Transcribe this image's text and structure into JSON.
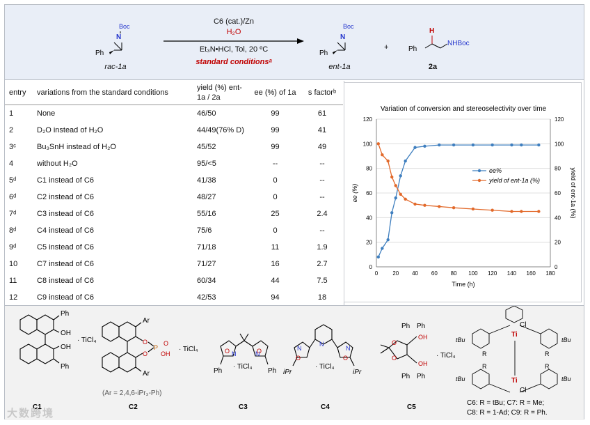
{
  "scheme": {
    "substrate_label": "rac-1a",
    "boc": "Boc",
    "N": "N",
    "ph": "Ph",
    "catalyst_line": "C6 (cat.)/Zn",
    "reagent_line": "H₂O",
    "additive_line": "Et₃N•HCl, Tol, 20 ºC",
    "conditions_line": "standard conditionsᵃ",
    "product1_label": "ent-1a",
    "plus": "+",
    "product2_label": "2a",
    "product2_nh": "NHBoc",
    "product2_h": "H"
  },
  "table": {
    "headers": [
      "entry",
      "variations from the standard conditions",
      "yield (%) ent-1a / 2a",
      "ee (%) of 1a",
      "s factorᵇ"
    ],
    "rows": [
      [
        "1",
        "None",
        "46/50",
        "99",
        "61"
      ],
      [
        "2",
        "D₂O instead of H₂O",
        "44/49(76% D)",
        "99",
        "41"
      ],
      [
        "3ᶜ",
        "Bu₃SnH instead of H₂O",
        "45/52",
        "99",
        "49"
      ],
      [
        "4",
        "without H₂O",
        "95/<5",
        "--",
        "--"
      ],
      [
        "5ᵈ",
        "C1 instead of C6",
        "41/38",
        "0",
        "--"
      ],
      [
        "6ᵈ",
        "C2 instead of C6",
        "48/27",
        "0",
        "--"
      ],
      [
        "7ᵈ",
        "C3 instead of C6",
        "55/16",
        "25",
        "2.4"
      ],
      [
        "8ᵈ",
        "C4 instead of C6",
        "75/6",
        "0",
        "--"
      ],
      [
        "9ᵈ",
        "C5 instead of C6",
        "71/18",
        "11",
        "1.9"
      ],
      [
        "10",
        "C7 instead of C6",
        "71/27",
        "16",
        "2.7"
      ],
      [
        "11",
        "C8 instead of C6",
        "60/34",
        "44",
        "7.5"
      ],
      [
        "12",
        "C9 instead of C6",
        "42/53",
        "94",
        "18"
      ]
    ]
  },
  "chart_data": {
    "type": "line",
    "title": "Variation of conversion and stereoselectivity over time",
    "xlabel": "Time (h)",
    "ylabel": "ee (%)",
    "y2label": "yield of ent-1a (%)",
    "xlim": [
      0,
      180
    ],
    "ylim": [
      0,
      120
    ],
    "y2lim": [
      0,
      120
    ],
    "xticks": [
      0,
      20,
      40,
      60,
      80,
      100,
      120,
      140,
      160,
      180
    ],
    "yticks": [
      0,
      20,
      40,
      60,
      80,
      100,
      120
    ],
    "legend_position": "right-middle",
    "series": [
      {
        "name": "ee%",
        "color": "#3f7fbf",
        "axis": "left",
        "x": [
          2,
          6,
          12,
          16,
          20,
          25,
          30,
          40,
          50,
          65,
          80,
          100,
          120,
          140,
          150,
          168
        ],
        "y": [
          8,
          15,
          22,
          44,
          56,
          74,
          86,
          97,
          98,
          99,
          99,
          99,
          99,
          99,
          99,
          99
        ]
      },
      {
        "name": "yield of ent-1a (%)",
        "color": "#e2692a",
        "axis": "right",
        "x": [
          2,
          6,
          12,
          16,
          20,
          25,
          30,
          40,
          50,
          65,
          80,
          100,
          120,
          140,
          150,
          168
        ],
        "y": [
          100,
          91,
          86,
          73,
          66,
          59,
          55,
          51,
          50,
          49,
          48,
          47,
          46,
          45,
          45,
          45
        ]
      }
    ]
  },
  "catalysts": {
    "c1": "C1",
    "c2": "C2",
    "c3": "C3",
    "c4": "C4",
    "c5": "C5",
    "ticl4": "· TiCl₄",
    "c2_ar": "(Ar = 2,4,6-iPr₃-Ph)",
    "ph": "Ph",
    "ar": "Ar",
    "oh": "OH",
    "ipr": "iPr",
    "salen_legend_1": "C6: R = tBu;   C7: R = Me;",
    "salen_legend_2": "C8: R = 1-Ad; C9: R = Ph.",
    "tbu": "tBu",
    "r": "R",
    "ti": "Ti",
    "cl": "Cl"
  },
  "watermark": "大数跨境"
}
